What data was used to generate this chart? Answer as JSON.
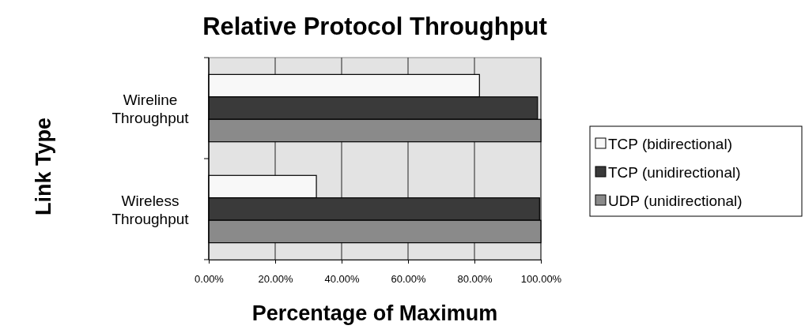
{
  "chart_data": {
    "type": "bar",
    "orientation": "horizontal",
    "title": "Relative Protocol Throughput",
    "xlabel": "Percentage of Maximum",
    "ylabel": "Link Type",
    "categories": [
      "Wireline Throughput",
      "Wireless Throughput"
    ],
    "series": [
      {
        "name": "TCP (bidirectional)",
        "color": "#f8f8f8",
        "values": [
          81.5,
          32.4
        ]
      },
      {
        "name": "TCP (unidirectional)",
        "color": "#3a3a3a",
        "values": [
          99.0,
          99.6
        ]
      },
      {
        "name": "UDP (unidirectional)",
        "color": "#8a8a8a",
        "values": [
          100,
          100
        ]
      }
    ],
    "xlim": [
      0,
      100
    ],
    "xticks": [
      {
        "value": 0,
        "label": "0.00%"
      },
      {
        "value": 20,
        "label": "20.00%"
      },
      {
        "value": 40,
        "label": "40.00%"
      },
      {
        "value": 60,
        "label": "60.00%"
      },
      {
        "value": 80,
        "label": "80.00%"
      },
      {
        "value": 100,
        "label": "100.00%"
      }
    ],
    "grid": "x",
    "legend": "right"
  }
}
